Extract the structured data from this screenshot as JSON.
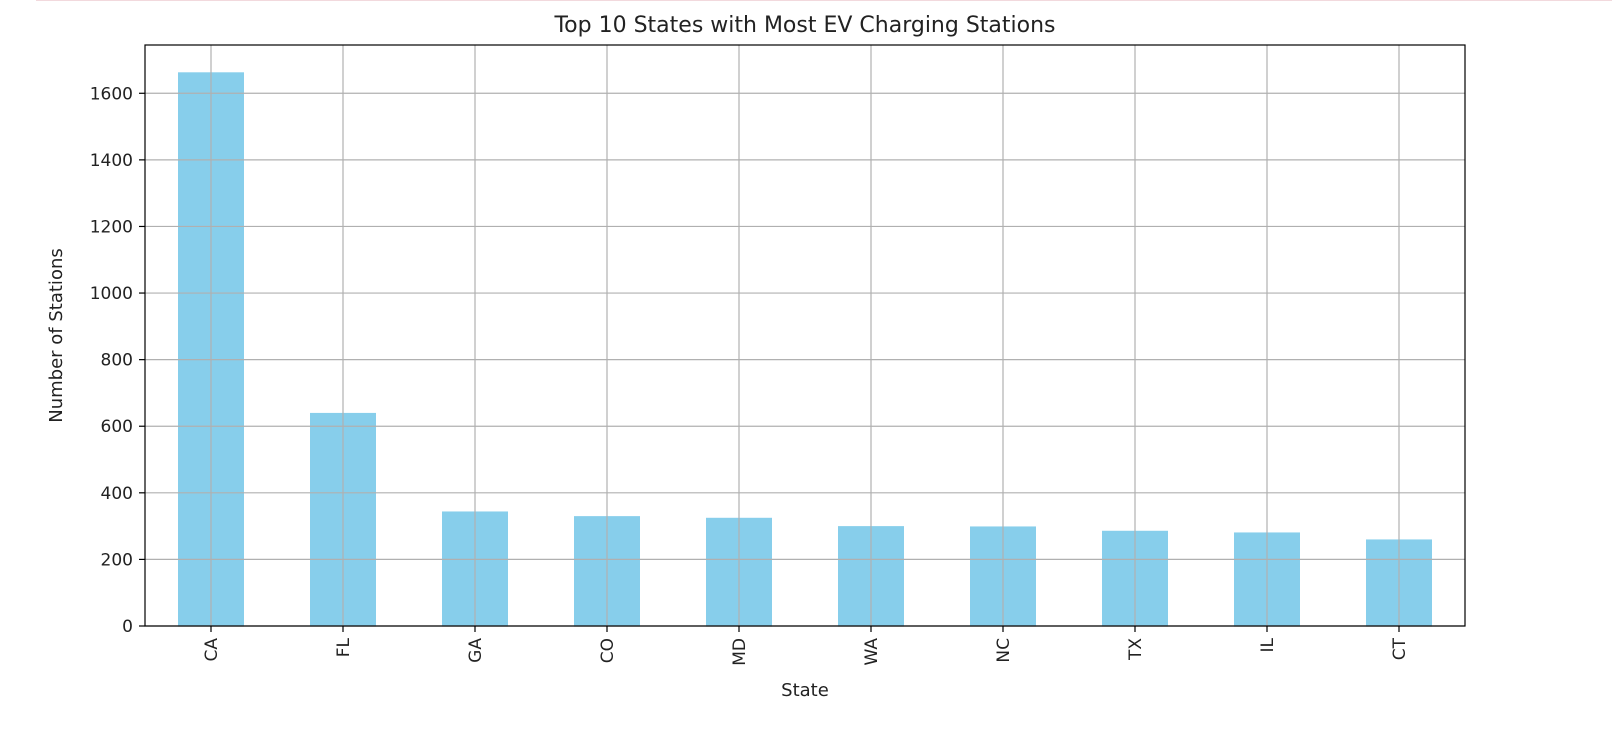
{
  "chart_data": {
    "type": "bar",
    "title": "Top 10 States with Most EV Charging Stations",
    "xlabel": "State",
    "ylabel": "Number of Stations",
    "categories": [
      "CA",
      "FL",
      "GA",
      "CO",
      "MD",
      "WA",
      "NC",
      "TX",
      "IL",
      "CT"
    ],
    "values": [
      1663,
      640,
      344,
      330,
      325,
      300,
      299,
      286,
      281,
      260
    ],
    "ylim": [
      0,
      1745
    ],
    "yticks": [
      0,
      200,
      400,
      600,
      800,
      1000,
      1200,
      1400,
      1600
    ],
    "grid": true,
    "bar_color": "#87ceeb",
    "grid_color": "#b0b0b0",
    "axis_color": "#000000",
    "x_tick_rotation": "vertical"
  }
}
